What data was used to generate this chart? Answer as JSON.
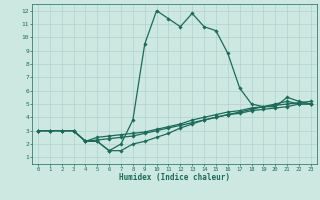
{
  "xlabel": "Humidex (Indice chaleur)",
  "background_color": "#cce8e0",
  "grid_color": "#aacccc",
  "line_color": "#1a6b5a",
  "xlim": [
    -0.5,
    23.5
  ],
  "ylim": [
    0.5,
    12.5
  ],
  "xticks": [
    0,
    1,
    2,
    3,
    4,
    5,
    6,
    7,
    8,
    9,
    10,
    11,
    12,
    13,
    14,
    15,
    16,
    17,
    18,
    19,
    20,
    21,
    22,
    23
  ],
  "yticks": [
    1,
    2,
    3,
    4,
    5,
    6,
    7,
    8,
    9,
    10,
    11,
    12
  ],
  "lines": [
    {
      "x": [
        0,
        1,
        2,
        3,
        4,
        5,
        6,
        7,
        8,
        9,
        10,
        11,
        12,
        13,
        14,
        15,
        16,
        17,
        18,
        19,
        20,
        21,
        22,
        23
      ],
      "y": [
        3,
        3,
        3,
        3,
        2.2,
        2.2,
        1.5,
        2.0,
        3.8,
        9.5,
        12,
        11.4,
        10.8,
        11.8,
        10.8,
        10.5,
        8.8,
        6.2,
        5,
        4.8,
        4.8,
        5.5,
        5.2,
        5
      ]
    },
    {
      "x": [
        0,
        1,
        2,
        3,
        4,
        5,
        6,
        7,
        8,
        9,
        10,
        11,
        12,
        13,
        14,
        15,
        16,
        17,
        18,
        19,
        20,
        21,
        22,
        23
      ],
      "y": [
        3,
        3,
        3,
        3,
        2.2,
        2.5,
        2.6,
        2.7,
        2.8,
        2.9,
        3.1,
        3.3,
        3.5,
        3.8,
        4.0,
        4.2,
        4.4,
        4.5,
        4.7,
        4.8,
        4.9,
        5.0,
        5.1,
        5.2
      ]
    },
    {
      "x": [
        0,
        1,
        2,
        3,
        4,
        5,
        6,
        7,
        8,
        9,
        10,
        11,
        12,
        13,
        14,
        15,
        16,
        17,
        18,
        19,
        20,
        21,
        22,
        23
      ],
      "y": [
        3,
        3,
        3,
        3,
        2.2,
        2.3,
        2.4,
        2.5,
        2.6,
        2.8,
        3.0,
        3.2,
        3.4,
        3.6,
        3.8,
        4.0,
        4.2,
        4.3,
        4.5,
        4.6,
        4.7,
        4.8,
        5.0,
        5.0
      ]
    },
    {
      "x": [
        0,
        1,
        2,
        3,
        4,
        5,
        6,
        7,
        8,
        9,
        10,
        11,
        12,
        13,
        14,
        15,
        16,
        17,
        18,
        19,
        20,
        21,
        22,
        23
      ],
      "y": [
        3,
        3,
        3,
        3,
        2.2,
        2.2,
        1.5,
        1.5,
        2.0,
        2.2,
        2.5,
        2.8,
        3.2,
        3.5,
        3.8,
        4.0,
        4.2,
        4.4,
        4.6,
        4.8,
        5.0,
        5.2,
        5.0,
        5.0
      ]
    }
  ]
}
